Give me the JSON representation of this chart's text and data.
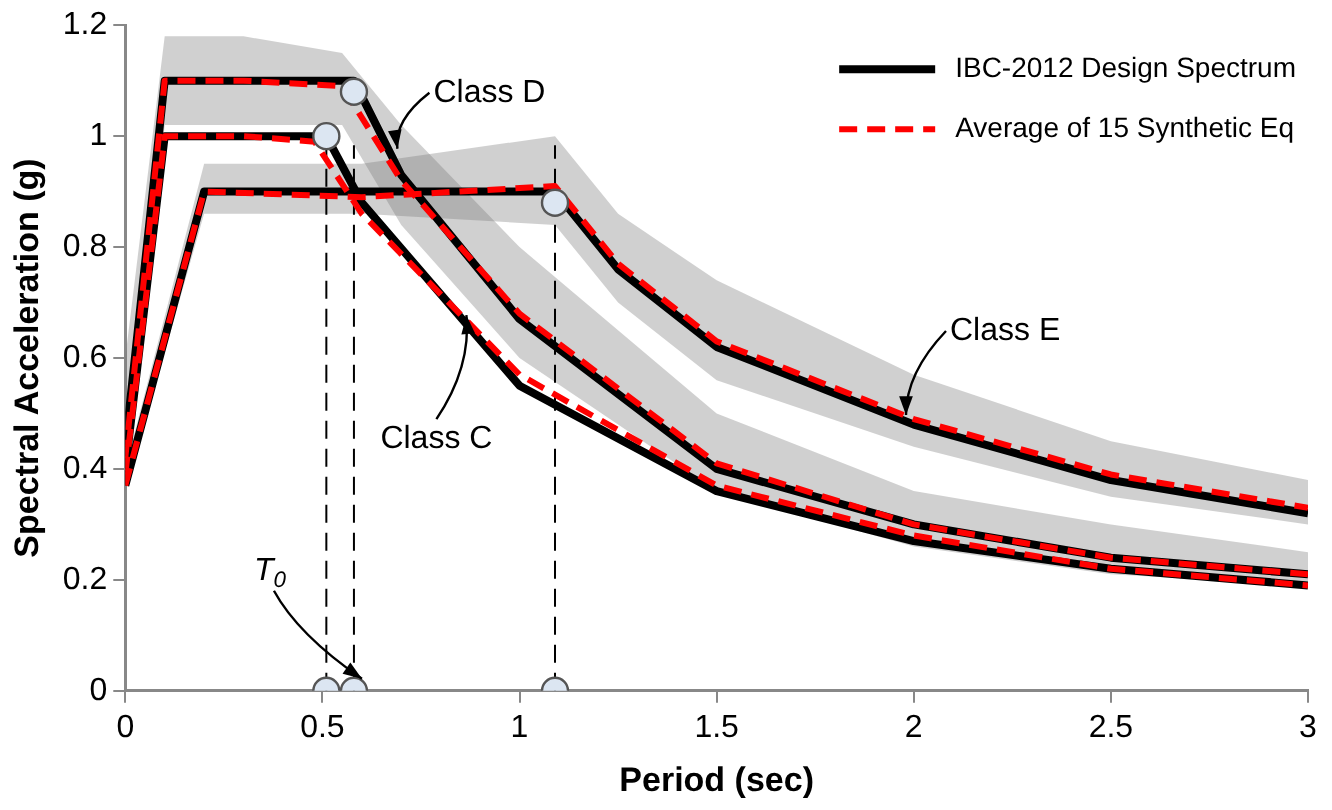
{
  "chart_data": {
    "type": "line",
    "xlabel": "Period (sec)",
    "ylabel": "Spectral Acceleration (g)",
    "xlim": [
      0,
      3
    ],
    "xticks": [
      0,
      0.5,
      1,
      1.5,
      2,
      2.5,
      3
    ],
    "ylim": [
      0,
      1.2
    ],
    "yticks": [
      0,
      0.2,
      0.4,
      0.6,
      0.8,
      1,
      1.2
    ],
    "grid": false,
    "legend": "top right",
    "series": [
      {
        "name": "IBC-2012 Design Spectrum",
        "color": "#000000",
        "line_style": "solid",
        "marker": "none",
        "x": [
          0,
          0.1,
          0.58,
          0.7,
          1,
          1.5,
          2,
          2.5,
          3
        ],
        "values": [
          0.44,
          1.1,
          1.1,
          0.93,
          0.67,
          0.4,
          0.3,
          0.24,
          0.21
        ]
      },
      {
        "color": "#000000",
        "line_style": "solid",
        "marker": "none",
        "x": [
          0,
          0.1,
          0.51,
          0.6,
          1,
          1.5,
          2,
          2.5,
          3
        ],
        "values": [
          0.4,
          1.0,
          1.0,
          0.88,
          0.55,
          0.36,
          0.27,
          0.22,
          0.19
        ]
      },
      {
        "color": "#000000",
        "line_style": "solid",
        "marker": "none",
        "x": [
          0,
          0.2,
          1.09,
          1.25,
          1.5,
          2,
          2.5,
          3
        ],
        "values": [
          0.37,
          0.9,
          0.9,
          0.76,
          0.62,
          0.48,
          0.38,
          0.32
        ]
      },
      {
        "name": "Average of 15 Synthetic Eq",
        "color": "#ff0000",
        "line_style": "dashed",
        "marker": "none",
        "x": [
          0,
          0.1,
          0.3,
          0.55,
          0.7,
          1,
          1.5,
          2,
          2.5,
          3
        ],
        "values": [
          0.42,
          1.1,
          1.1,
          1.09,
          0.92,
          0.68,
          0.41,
          0.3,
          0.24,
          0.21
        ],
        "lower": [
          0.38,
          1.02,
          1.02,
          1.02,
          0.84,
          0.6,
          0.36,
          0.26,
          0.21,
          0.19
        ],
        "upper": [
          0.6,
          1.18,
          1.18,
          1.15,
          1.02,
          0.8,
          0.5,
          0.36,
          0.3,
          0.25
        ]
      },
      {
        "color": "#ff0000",
        "line_style": "dashed",
        "marker": "none",
        "x": [
          0,
          0.1,
          0.3,
          0.48,
          0.6,
          1,
          1.5,
          2,
          2.5,
          3
        ],
        "values": [
          0.39,
          1.0,
          1.0,
          0.99,
          0.86,
          0.57,
          0.37,
          0.28,
          0.22,
          0.19
        ]
      },
      {
        "color": "#ff0000",
        "line_style": "dashed",
        "marker": "none",
        "x": [
          0,
          0.2,
          0.6,
          1.09,
          1.25,
          1.5,
          2,
          2.5,
          3
        ],
        "values": [
          0.37,
          0.9,
          0.89,
          0.91,
          0.77,
          0.63,
          0.49,
          0.39,
          0.33
        ],
        "lower": [
          0.36,
          0.86,
          0.86,
          0.84,
          0.7,
          0.56,
          0.44,
          0.35,
          0.3
        ],
        "upper": [
          0.4,
          0.95,
          0.95,
          1.0,
          0.86,
          0.74,
          0.57,
          0.45,
          0.38
        ]
      },
      {
        "type": "scatter",
        "color": "#dce6f2",
        "marker": "circle",
        "x": [
          0.51,
          0.58,
          1.09,
          0.51,
          0.58,
          1.09
        ],
        "values": [
          1.0,
          1.08,
          0.88,
          0,
          0,
          0
        ]
      }
    ],
    "ref_lines": [
      {
        "axis": "x",
        "value": 0.51,
        "line_style": "dashed",
        "color": "#000000"
      },
      {
        "axis": "x",
        "value": 0.58,
        "line_style": "dashed",
        "color": "#000000"
      },
      {
        "axis": "x",
        "value": 1.09,
        "line_style": "dashed",
        "color": "#000000"
      }
    ],
    "annotations": [
      {
        "text": "Class D",
        "x": 0.67,
        "y": 0.97
      },
      {
        "text": "Class E",
        "x": 1.96,
        "y": 0.49
      },
      {
        "text": "Class C",
        "x": 0.85,
        "y": 0.67
      },
      {
        "text": "T$_{0}$",
        "x": 0.58,
        "y": 0
      }
    ]
  }
}
